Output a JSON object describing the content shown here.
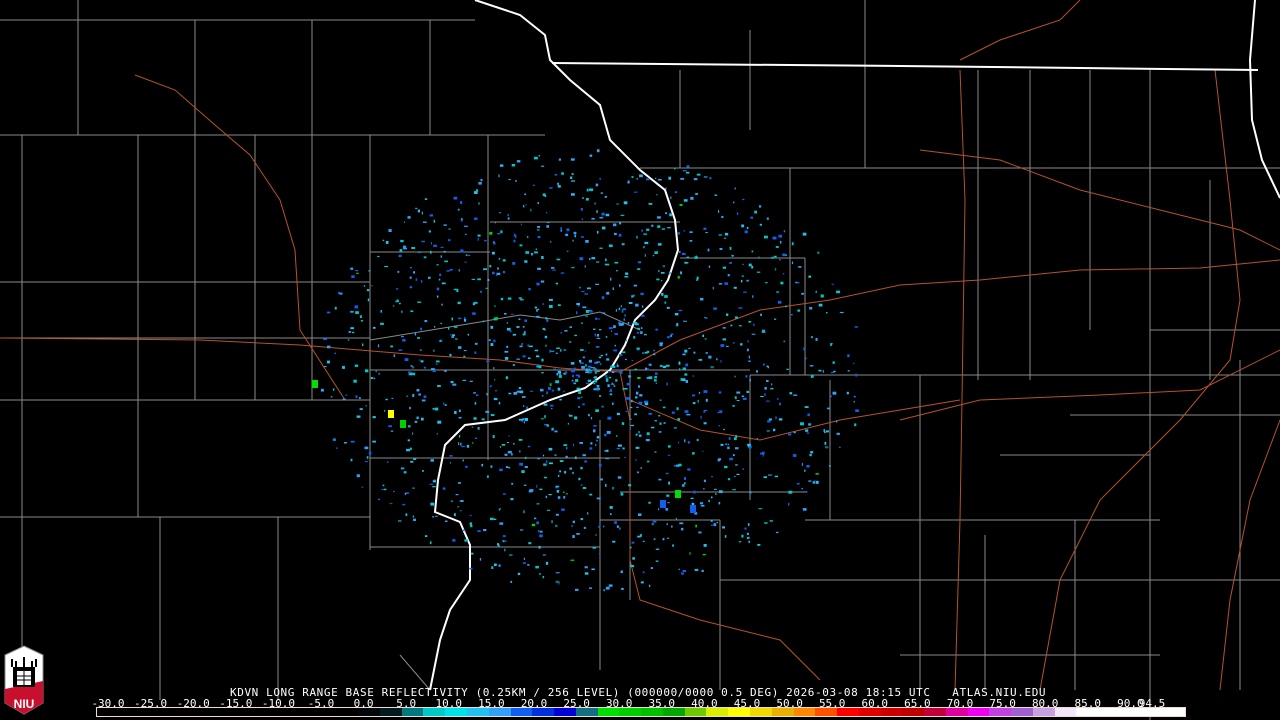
{
  "product_title": "KDVN LONG RANGE BASE REFLECTIVITY (0.25KM / 256 LEVEL) (000000/0000 0.5 DEG) 2026-03-08 18:15 UTC   ATLAS.NIU.EDU",
  "logo_text": "NIU",
  "colorbar": {
    "labels": [
      "-30.0",
      "-25.0",
      "-20.0",
      "-15.0",
      "-10.0",
      "-5.0",
      "0.0",
      "5.0",
      "10.0",
      "15.0",
      "20.0",
      "25.0",
      "30.0",
      "35.0",
      "40.0",
      "45.0",
      "50.0",
      "55.0",
      "60.0",
      "65.0",
      "70.0",
      "75.0",
      "80.0",
      "85.0",
      "90.0",
      "94.5"
    ],
    "colors": [
      "#000000",
      "#000000",
      "#000000",
      "#000000",
      "#000000",
      "#000000",
      "#000000",
      "#000000",
      "#000000",
      "#000000",
      "#000000",
      "#000000",
      "#02080a",
      "#001a1e",
      "#007a80",
      "#00c8c8",
      "#00e0e8",
      "#20c0f0",
      "#30a0f8",
      "#1060f0",
      "#0030e0",
      "#0000d8",
      "#107080",
      "#00e000",
      "#00d000",
      "#00c000",
      "#00a800",
      "#70c800",
      "#d8f000",
      "#ffff00",
      "#f0d800",
      "#e8b000",
      "#ff8800",
      "#ff5000",
      "#ff0000",
      "#e00000",
      "#cc0000",
      "#c00000",
      "#c0003a",
      "#e000a0",
      "#f000f0",
      "#c040e0",
      "#a060d0",
      "#c8a0e0",
      "#f0e8f8",
      "#ffffff",
      "#ffffff",
      "#ffffff",
      "#ffffff",
      "#ffffff"
    ]
  },
  "colors": {
    "river": "#ffffff",
    "county": "#8a8a8a",
    "highway": "#b5532c",
    "background": "#000000",
    "logo_red": "#c8102e"
  }
}
